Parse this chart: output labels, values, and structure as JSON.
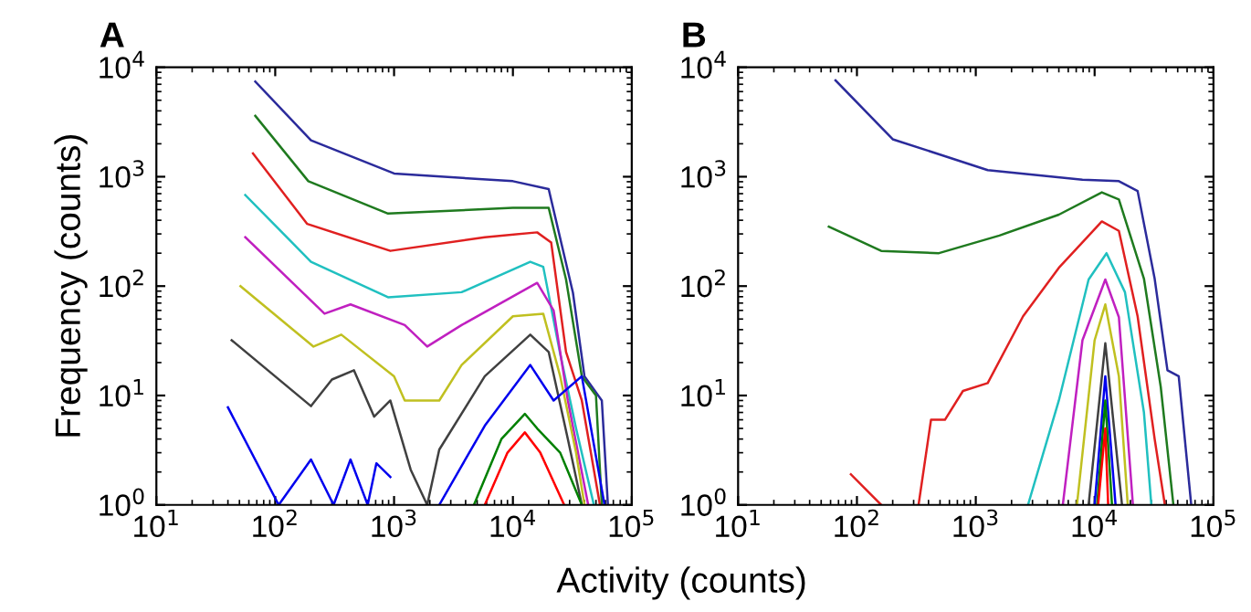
{
  "chart_data": [
    {
      "type": "line",
      "title": "A",
      "xlabel": "Activity (counts)",
      "ylabel": "Frequency (counts)",
      "log": "xy",
      "grid": false,
      "legend": false,
      "marker": "none",
      "line_style": "solid",
      "xlim": [
        10,
        100000
      ],
      "ylim": [
        1,
        10000
      ],
      "xticks": [
        {
          "value": 10,
          "label": "10$^{1}$"
        },
        {
          "value": 100,
          "label": "10$^{2}$"
        },
        {
          "value": 1000,
          "label": "10$^{3}$"
        },
        {
          "value": 10000,
          "label": "10$^{4}$"
        },
        {
          "value": 100000,
          "label": "10$^{5}$"
        }
      ],
      "yticks": [
        {
          "value": 1,
          "label": "10$^{0}$"
        },
        {
          "value": 10,
          "label": "10$^{1}$"
        },
        {
          "value": 100,
          "label": "10$^{2}$"
        },
        {
          "value": 1000,
          "label": "10$^{3}$"
        },
        {
          "value": 10000,
          "label": "10$^{4}$"
        }
      ],
      "series": [
        {
          "color": "#2b2b9b",
          "x": [
            68,
            200,
            1000,
            10000,
            20000,
            32000,
            40000,
            56000,
            63000
          ],
          "values": [
            7400,
            2150,
            1070,
            910,
            770,
            87,
            15,
            9,
            1
          ]
        },
        {
          "color": "#1f7a1f",
          "x": [
            68,
            190,
            890,
            10000,
            20000,
            28000,
            38000,
            50000,
            56000
          ],
          "values": [
            3600,
            910,
            460,
            520,
            520,
            115,
            15,
            10,
            1
          ]
        },
        {
          "color": "#e02020",
          "x": [
            65,
            186,
            930,
            5800,
            16000,
            21000,
            28000,
            38000,
            54000
          ],
          "values": [
            1630,
            370,
            210,
            280,
            310,
            250,
            25,
            9,
            1
          ]
        },
        {
          "color": "#20c0c0",
          "x": [
            56,
            200,
            890,
            3700,
            14000,
            18000,
            25000,
            34000,
            48000
          ],
          "values": [
            680,
            167,
            79,
            88,
            167,
            150,
            24,
            5,
            1
          ]
        },
        {
          "color": "#c020c0",
          "x": [
            56,
            260,
            430,
            1230,
            1900,
            3700,
            16000,
            22000,
            29000,
            43000
          ],
          "values": [
            280,
            56,
            68,
            44,
            28,
            44,
            107,
            60,
            9,
            1
          ]
        },
        {
          "color": "#c0c020",
          "x": [
            51,
            210,
            360,
            1000,
            1230,
            2400,
            3700,
            10000,
            18000,
            25000,
            34000,
            40000
          ],
          "values": [
            100,
            28,
            36,
            15,
            9,
            9,
            19,
            53,
            56,
            15,
            3,
            1
          ]
        },
        {
          "color": "#404040",
          "x": [
            43,
            200,
            300,
            460,
            680,
            930,
            1380,
            1900,
            2400,
            5800,
            14000,
            20000,
            29000,
            38000
          ],
          "values": [
            32,
            8,
            14,
            17,
            6.4,
            9,
            2.1,
            1,
            3.2,
            15,
            36,
            25,
            4,
            1
          ]
        },
        {
          "color": "#0000ee",
          "x": [
            40,
            107,
            200,
            310,
            430,
            600,
            710,
            930,
            1500,
            2400,
            5800,
            14000,
            22000,
            38000,
            59000
          ],
          "values": [
            7.8,
            1,
            2.6,
            1,
            2.6,
            1,
            2.4,
            1.8,
            null,
            1,
            5.3,
            19,
            9,
            15,
            1
          ]
        },
        {
          "color": "#008000",
          "x": [
            4700,
            8000,
            12600,
            16000,
            25000,
            38000
          ],
          "values": [
            1,
            4,
            6.8,
            5,
            3,
            1
          ]
        },
        {
          "color": "#ff0000",
          "x": [
            5800,
            9000,
            12600,
            17000,
            27000
          ],
          "values": [
            1,
            3,
            4.6,
            3,
            1
          ]
        }
      ]
    },
    {
      "type": "line",
      "title": "B",
      "log": "xy",
      "grid": false,
      "legend": false,
      "marker": "none",
      "line_style": "solid",
      "xlim": [
        10,
        100000
      ],
      "ylim": [
        1,
        10000
      ],
      "xticks": [
        {
          "value": 10,
          "label": "10$^{1}$"
        },
        {
          "value": 100,
          "label": "10$^{2}$"
        },
        {
          "value": 1000,
          "label": "10$^{3}$"
        },
        {
          "value": 10000,
          "label": "10$^{4}$"
        },
        {
          "value": 100000,
          "label": "10$^{5}$"
        }
      ],
      "yticks": [
        {
          "value": 1,
          "label": "10$^{0}$"
        },
        {
          "value": 10,
          "label": "10$^{1}$"
        },
        {
          "value": 100,
          "label": "10$^{2}$"
        },
        {
          "value": 1000,
          "label": "10$^{3}$"
        },
        {
          "value": 10000,
          "label": "10$^{4}$"
        }
      ],
      "series": [
        {
          "color": "#2b2b9b",
          "x": [
            66,
            200,
            1260,
            7900,
            16000,
            23000,
            32000,
            41000,
            51000,
            65000
          ],
          "values": [
            7600,
            2200,
            1150,
            940,
            910,
            740,
            117,
            17,
            15,
            1
          ]
        },
        {
          "color": "#1f7a1f",
          "x": [
            58,
            160,
            490,
            1580,
            5000,
            11500,
            16000,
            26000,
            36000,
            46000
          ],
          "values": [
            350,
            210,
            200,
            290,
            450,
            720,
            620,
            117,
            12,
            1
          ]
        },
        {
          "color": "#e02020",
          "x": [
            89,
            160,
            250,
            330,
            420,
            550,
            780,
            1260,
            2500,
            5000,
            11500,
            16000,
            23000,
            32000,
            39000
          ],
          "values": [
            1.9,
            1,
            null,
            1,
            6,
            6,
            11,
            13,
            53,
            147,
            390,
            320,
            53,
            4,
            1
          ]
        },
        {
          "color": "#20c0c0",
          "x": [
            2750,
            5000,
            8900,
            12600,
            18000,
            26000,
            30000
          ],
          "values": [
            1,
            9,
            115,
            200,
            88,
            7,
            1
          ]
        },
        {
          "color": "#c020c0",
          "x": [
            5400,
            7900,
            12300,
            16000,
            21000
          ],
          "values": [
            1,
            32,
            115,
            52,
            1
          ]
        },
        {
          "color": "#c0c020",
          "x": [
            7100,
            10000,
            12300,
            16000,
            19000
          ],
          "values": [
            1,
            32,
            68,
            15,
            1
          ]
        },
        {
          "color": "#404040",
          "x": [
            8900,
            12300,
            17000
          ],
          "values": [
            1,
            30,
            1
          ]
        },
        {
          "color": "#0000ee",
          "x": [
            10000,
            12300,
            15000
          ],
          "values": [
            1,
            15,
            1
          ]
        },
        {
          "color": "#008000",
          "x": [
            10500,
            12300,
            14000
          ],
          "values": [
            1,
            9,
            1
          ]
        },
        {
          "color": "#ff0000",
          "x": [
            10700,
            12300,
            13000
          ],
          "values": [
            1,
            5,
            1
          ]
        }
      ]
    }
  ]
}
